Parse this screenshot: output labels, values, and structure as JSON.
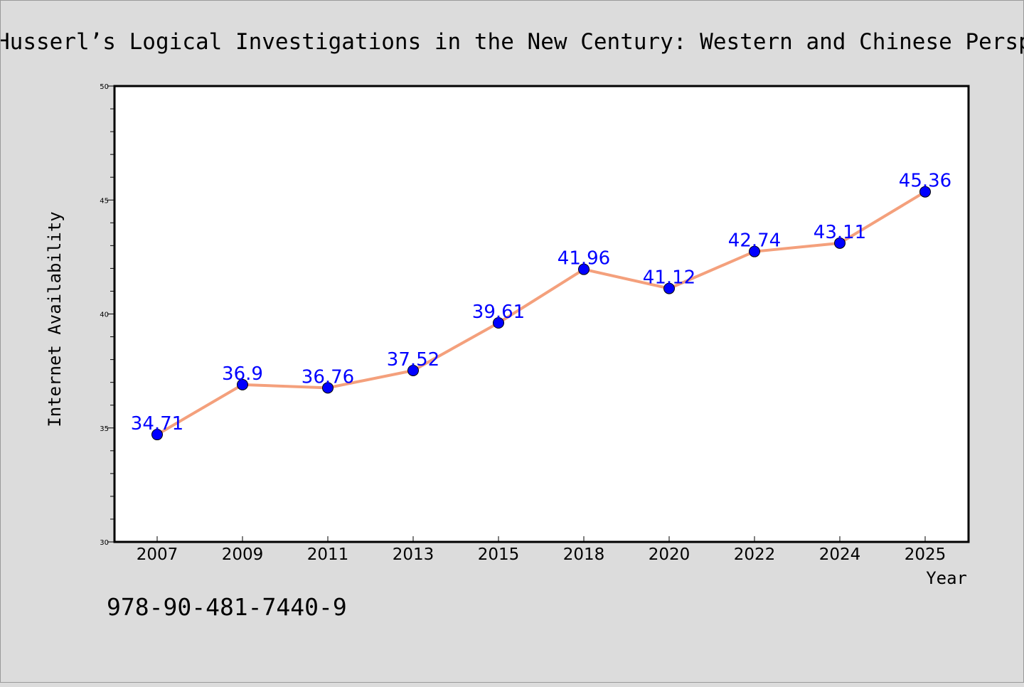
{
  "chart_data": {
    "type": "line",
    "title": "Husserl’s Logical Investigations in the New Century: Western and Chinese Perspectives",
    "xlabel": "Year",
    "ylabel": "Internet Availability",
    "categories": [
      "2007",
      "2009",
      "2011",
      "2013",
      "2015",
      "2018",
      "2020",
      "2022",
      "2024",
      "2025"
    ],
    "series": [
      {
        "values": [
          34.71,
          36.9,
          36.76,
          37.52,
          39.61,
          41.96,
          41.12,
          42.74,
          43.11,
          45.36
        ],
        "data_labels": [
          "34.71",
          "36.9",
          "36.76",
          "37.52",
          "39.61",
          "41.96",
          "41.12",
          "42.74",
          "43.11",
          "45.36"
        ],
        "line_color": "#f4a07c",
        "marker_color": "#0000ff"
      }
    ],
    "ylim": [
      30,
      50
    ],
    "yticks": [
      "30",
      "35",
      "40",
      "45",
      "50"
    ],
    "grid": false,
    "legend": "none"
  },
  "footer": {
    "text": "978-90-481-7440-9"
  },
  "colors": {
    "background": "#dcdcdc",
    "plot_background": "#ffffff",
    "label_color": "#0000ff"
  }
}
